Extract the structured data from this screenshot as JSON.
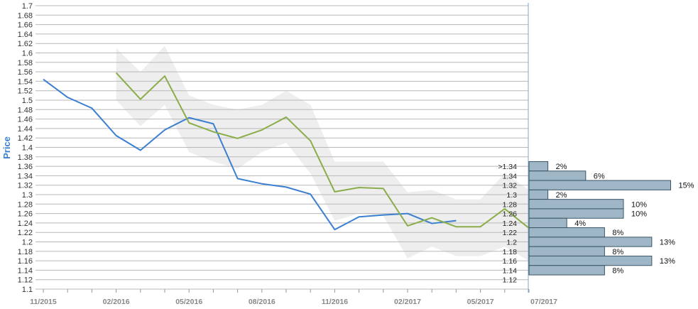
{
  "chart_data": {
    "type": "line",
    "ylabel": "Price",
    "ylim": [
      1.1,
      1.7
    ],
    "y_ticks": [
      "1.1",
      "1.12",
      "1.14",
      "1.16",
      "1.18",
      "1.2",
      "1.22",
      "1.24",
      "1.26",
      "1.28",
      "1.3",
      "1.32",
      "1.34",
      "1.36",
      "1.38",
      "1.4",
      "1.42",
      "1.44",
      "1.46",
      "1.48",
      "1.5",
      "1.52",
      "1.54",
      "1.56",
      "1.58",
      "1.6",
      "1.62",
      "1.64",
      "1.66",
      "1.68",
      "1.7"
    ],
    "x_ticks": [
      "11/2015",
      "02/2016",
      "05/2016",
      "08/2016",
      "11/2016",
      "02/2017",
      "05/2017",
      "07/2017"
    ],
    "x_months": [
      "2015-11",
      "2015-12",
      "2016-01",
      "2016-02",
      "2016-03",
      "2016-04",
      "2016-05",
      "2016-06",
      "2016-07",
      "2016-08",
      "2016-09",
      "2016-10",
      "2016-11",
      "2016-12",
      "2017-01",
      "2017-02",
      "2017-03",
      "2017-04",
      "2017-05",
      "2017-06",
      "2017-07"
    ],
    "grid": true,
    "series": [
      {
        "color": "#3a7fd0",
        "x": [
          "2015-11",
          "2015-12",
          "2016-01",
          "2016-02",
          "2016-03",
          "2016-04",
          "2016-05",
          "2016-06",
          "2016-07",
          "2016-08",
          "2016-09",
          "2016-10",
          "2016-11",
          "2016-12",
          "2017-01",
          "2017-02",
          "2017-03",
          "2017-04"
        ],
        "values": [
          1.544,
          1.506,
          1.483,
          1.425,
          1.394,
          1.437,
          1.463,
          1.45,
          1.334,
          1.323,
          1.316,
          1.301,
          1.226,
          1.253,
          1.257,
          1.26,
          1.239,
          1.245
        ]
      },
      {
        "color": "#8aad4a",
        "x": [
          "2016-02",
          "2016-03",
          "2016-04",
          "2016-05",
          "2016-06",
          "2016-07",
          "2016-08",
          "2016-09",
          "2016-10",
          "2016-11",
          "2016-12",
          "2017-01",
          "2017-02",
          "2017-03",
          "2017-04",
          "2017-05",
          "2017-06",
          "2017-07"
        ],
        "values": [
          1.558,
          1.502,
          1.551,
          1.452,
          1.433,
          1.419,
          1.437,
          1.464,
          1.414,
          1.306,
          1.315,
          1.313,
          1.234,
          1.251,
          1.232,
          1.232,
          1.27,
          1.229
        ]
      }
    ],
    "band": {
      "color": "#eeeeee",
      "x": [
        "2016-02",
        "2016-03",
        "2016-04",
        "2016-05",
        "2016-06",
        "2016-07",
        "2016-08",
        "2016-09",
        "2016-10",
        "2016-11",
        "2016-12",
        "2017-01",
        "2017-02",
        "2017-03",
        "2017-04",
        "2017-05",
        "2017-06",
        "2017-07"
      ],
      "upper": [
        1.61,
        1.56,
        1.615,
        1.51,
        1.49,
        1.48,
        1.49,
        1.52,
        1.49,
        1.37,
        1.37,
        1.37,
        1.305,
        1.31,
        1.29,
        1.29,
        1.345,
        1.31
      ],
      "lower": [
        1.5,
        1.445,
        1.49,
        1.39,
        1.37,
        1.355,
        1.39,
        1.41,
        1.345,
        1.245,
        1.26,
        1.255,
        1.165,
        1.19,
        1.17,
        1.17,
        1.19,
        1.16
      ]
    },
    "distribution": {
      "color": "#9fb6c6",
      "border": "#3b5566",
      "bins": [
        {
          "label": ">1.34",
          "center": 1.36,
          "value": 2,
          "text": "2%"
        },
        {
          "label": "1.34",
          "center": 1.34,
          "value": 6,
          "text": "6%"
        },
        {
          "label": "1.32",
          "center": 1.32,
          "value": 15,
          "text": "15%"
        },
        {
          "label": "1.3",
          "center": 1.3,
          "value": 2,
          "text": "2%"
        },
        {
          "label": "1.28",
          "center": 1.28,
          "value": 10,
          "text": "10%"
        },
        {
          "label": "1.26",
          "center": 1.26,
          "value": 10,
          "text": "10%"
        },
        {
          "label": "1.24",
          "center": 1.24,
          "value": 4,
          "text": "4%"
        },
        {
          "label": "1.22",
          "center": 1.22,
          "value": 8,
          "text": "8%"
        },
        {
          "label": "1.2",
          "center": 1.2,
          "value": 13,
          "text": "13%"
        },
        {
          "label": "1.18",
          "center": 1.18,
          "value": 8,
          "text": "8%"
        },
        {
          "label": "1.16",
          "center": 1.16,
          "value": 13,
          "text": "13%"
        },
        {
          "label": "1.14",
          "center": 1.14,
          "value": 8,
          "text": "8%"
        },
        {
          "label": "1.12",
          "center": 1.12,
          "value": null,
          "text": ""
        }
      ]
    }
  }
}
